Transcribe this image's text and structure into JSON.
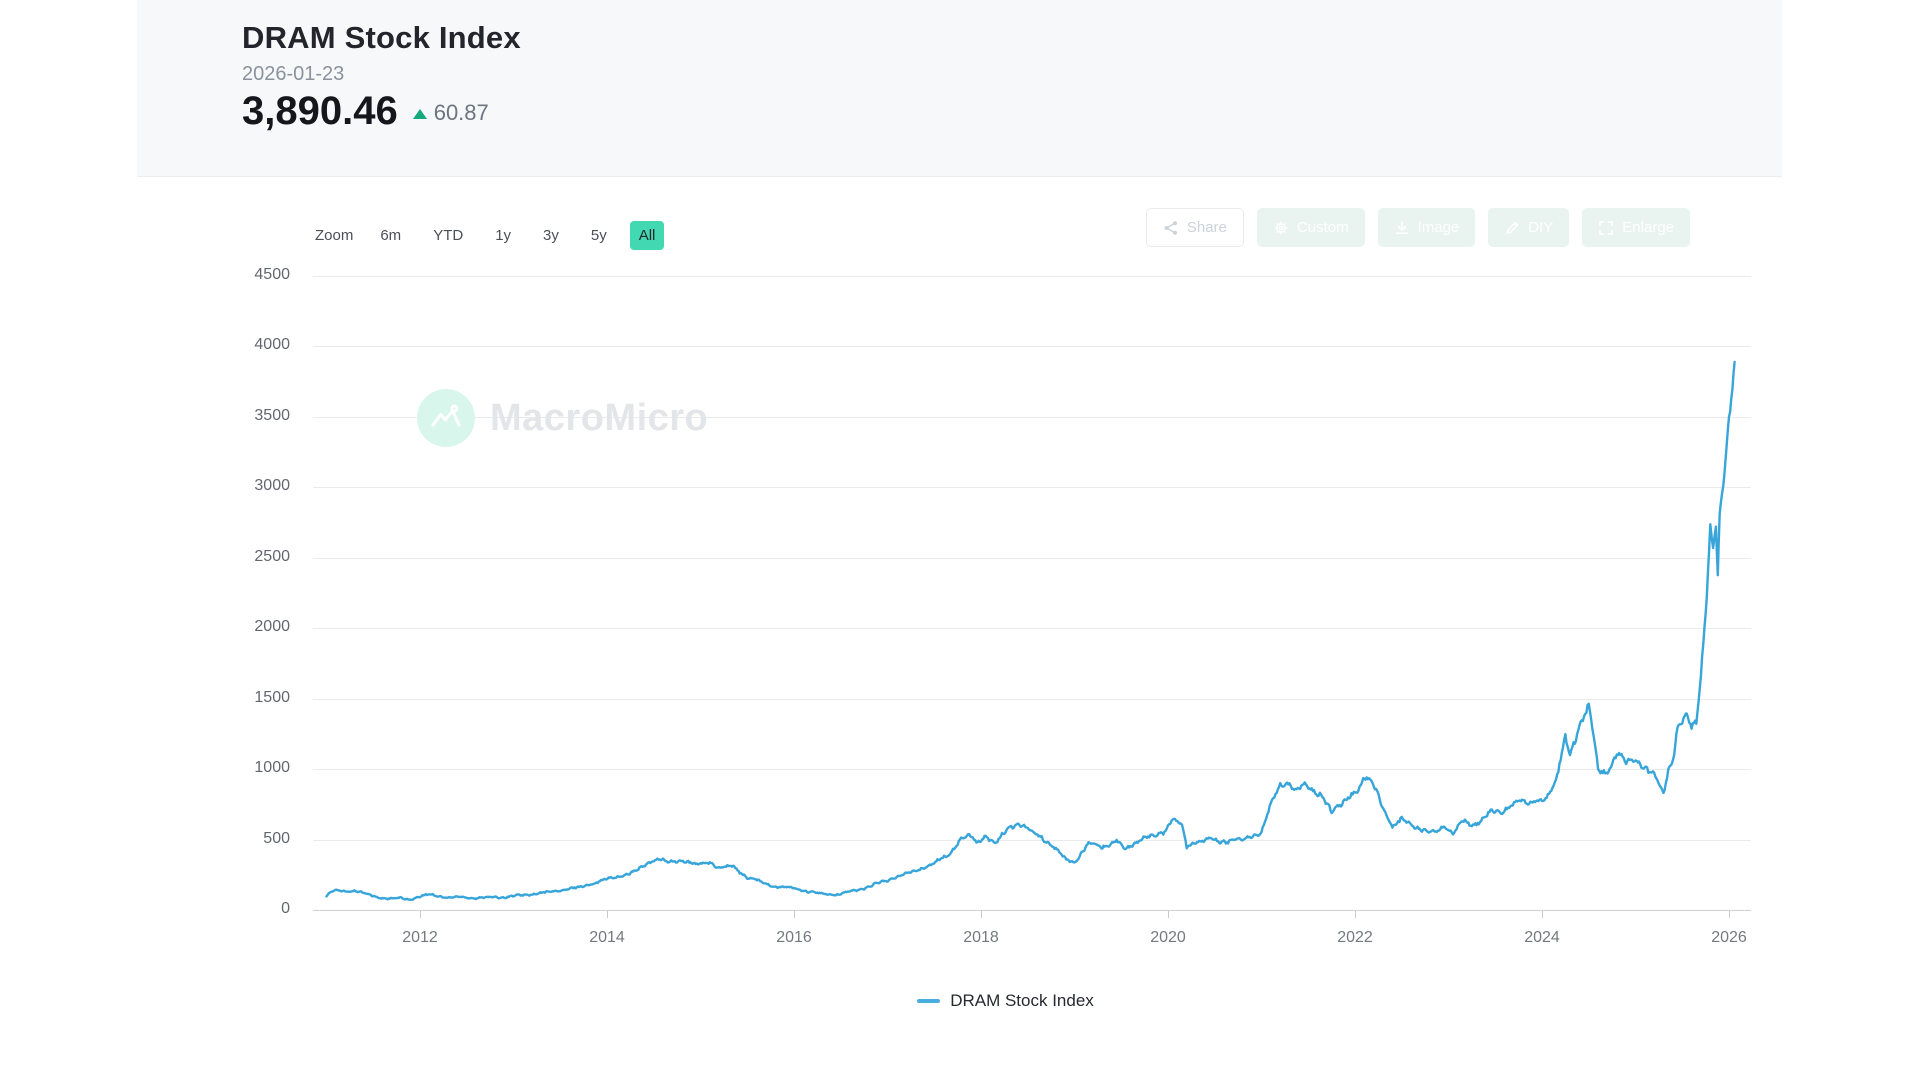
{
  "header": {
    "title": "DRAM Stock Index",
    "date": "2026-01-23",
    "value": "3,890.46",
    "change": "60.87",
    "change_direction": "up"
  },
  "toolbar": {
    "zoom_label": "Zoom",
    "ranges": [
      {
        "label": "6m",
        "active": false
      },
      {
        "label": "YTD",
        "active": false
      },
      {
        "label": "1y",
        "active": false
      },
      {
        "label": "3y",
        "active": false
      },
      {
        "label": "5y",
        "active": false
      },
      {
        "label": "All",
        "active": true
      }
    ],
    "actions": [
      {
        "label": "Share",
        "icon": "share",
        "style": "outline"
      },
      {
        "label": "Custom",
        "icon": "gear",
        "style": "mint"
      },
      {
        "label": "Image",
        "icon": "download",
        "style": "mint"
      },
      {
        "label": "DIY",
        "icon": "pencil",
        "style": "mint"
      },
      {
        "label": "Enlarge",
        "icon": "expand",
        "style": "mint"
      }
    ]
  },
  "chart": {
    "watermark": "MacroMicro",
    "legend_label": "DRAM Stock Index"
  },
  "colors": {
    "line_blue": "#38a5da",
    "legend_blue": "#4badde",
    "accent_green": "#41d8b2",
    "up_green": "#16a97d",
    "mint_button_bg": "#e9f4f1",
    "header_bg": "#f7f8f9"
  },
  "chart_data": {
    "type": "line",
    "title": "DRAM Stock Index",
    "xlabel": "",
    "ylabel": "",
    "x_range": [
      2011.0,
      2026.1
    ],
    "ylim": [
      0,
      4500
    ],
    "y_ticks": [
      0,
      500,
      1000,
      1500,
      2000,
      2500,
      3000,
      3500,
      4000,
      4500
    ],
    "x_ticks": [
      2012,
      2014,
      2016,
      2018,
      2020,
      2022,
      2024,
      2026
    ],
    "grid": "horizontal",
    "legend_position": "bottom",
    "latest": {
      "date": "2026-01-23",
      "value": 3890.46,
      "change": 60.87
    },
    "series": [
      {
        "name": "DRAM Stock Index",
        "color": "#38a5da",
        "points": [
          [
            2011.0,
            100
          ],
          [
            2011.05,
            125
          ],
          [
            2011.1,
            140
          ],
          [
            2011.2,
            132
          ],
          [
            2011.3,
            138
          ],
          [
            2011.45,
            110
          ],
          [
            2011.55,
            90
          ],
          [
            2011.7,
            78
          ],
          [
            2011.8,
            85
          ],
          [
            2011.9,
            75
          ],
          [
            2012.0,
            95
          ],
          [
            2012.1,
            110
          ],
          [
            2012.2,
            100
          ],
          [
            2012.3,
            88
          ],
          [
            2012.45,
            92
          ],
          [
            2012.6,
            85
          ],
          [
            2012.75,
            90
          ],
          [
            2012.9,
            92
          ],
          [
            2013.1,
            105
          ],
          [
            2013.3,
            120
          ],
          [
            2013.5,
            140
          ],
          [
            2013.7,
            160
          ],
          [
            2013.9,
            200
          ],
          [
            2014.1,
            235
          ],
          [
            2014.3,
            270
          ],
          [
            2014.45,
            340
          ],
          [
            2014.55,
            365
          ],
          [
            2014.65,
            335
          ],
          [
            2014.8,
            355
          ],
          [
            2014.95,
            320
          ],
          [
            2015.1,
            340
          ],
          [
            2015.2,
            300
          ],
          [
            2015.35,
            310
          ],
          [
            2015.5,
            230
          ],
          [
            2015.65,
            200
          ],
          [
            2015.8,
            165
          ],
          [
            2016.0,
            155
          ],
          [
            2016.15,
            130
          ],
          [
            2016.3,
            115
          ],
          [
            2016.45,
            108
          ],
          [
            2016.6,
            130
          ],
          [
            2016.75,
            155
          ],
          [
            2016.9,
            190
          ],
          [
            2017.1,
            235
          ],
          [
            2017.3,
            280
          ],
          [
            2017.5,
            330
          ],
          [
            2017.65,
            395
          ],
          [
            2017.8,
            510
          ],
          [
            2017.9,
            525
          ],
          [
            2017.95,
            480
          ],
          [
            2018.05,
            530
          ],
          [
            2018.15,
            465
          ],
          [
            2018.3,
            590
          ],
          [
            2018.4,
            620
          ],
          [
            2018.5,
            570
          ],
          [
            2018.65,
            520
          ],
          [
            2018.8,
            430
          ],
          [
            2018.9,
            360
          ],
          [
            2019.0,
            340
          ],
          [
            2019.15,
            470
          ],
          [
            2019.3,
            450
          ],
          [
            2019.45,
            490
          ],
          [
            2019.55,
            430
          ],
          [
            2019.7,
            505
          ],
          [
            2019.85,
            520
          ],
          [
            2019.95,
            555
          ],
          [
            2020.05,
            650
          ],
          [
            2020.15,
            600
          ],
          [
            2020.2,
            440
          ],
          [
            2020.3,
            490
          ],
          [
            2020.45,
            505
          ],
          [
            2020.55,
            480
          ],
          [
            2020.7,
            500
          ],
          [
            2020.8,
            495
          ],
          [
            2020.9,
            520
          ],
          [
            2021.0,
            560
          ],
          [
            2021.1,
            750
          ],
          [
            2021.2,
            880
          ],
          [
            2021.3,
            900
          ],
          [
            2021.35,
            860
          ],
          [
            2021.45,
            880
          ],
          [
            2021.55,
            840
          ],
          [
            2021.65,
            820
          ],
          [
            2021.75,
            700
          ],
          [
            2021.85,
            740
          ],
          [
            2021.95,
            820
          ],
          [
            2022.05,
            870
          ],
          [
            2022.1,
            945
          ],
          [
            2022.2,
            880
          ],
          [
            2022.3,
            740
          ],
          [
            2022.4,
            590
          ],
          [
            2022.5,
            640
          ],
          [
            2022.6,
            610
          ],
          [
            2022.75,
            560
          ],
          [
            2022.85,
            545
          ],
          [
            2022.95,
            600
          ],
          [
            2023.05,
            545
          ],
          [
            2023.15,
            630
          ],
          [
            2023.25,
            600
          ],
          [
            2023.35,
            640
          ],
          [
            2023.45,
            700
          ],
          [
            2023.55,
            680
          ],
          [
            2023.65,
            740
          ],
          [
            2023.75,
            780
          ],
          [
            2023.85,
            740
          ],
          [
            2023.95,
            780
          ],
          [
            2024.05,
            800
          ],
          [
            2024.15,
            900
          ],
          [
            2024.25,
            1230
          ],
          [
            2024.3,
            1120
          ],
          [
            2024.4,
            1300
          ],
          [
            2024.5,
            1430
          ],
          [
            2024.55,
            1230
          ],
          [
            2024.6,
            1000
          ],
          [
            2024.7,
            980
          ],
          [
            2024.8,
            1100
          ],
          [
            2024.9,
            1050
          ],
          [
            2025.0,
            1080
          ],
          [
            2025.1,
            1000
          ],
          [
            2025.2,
            950
          ],
          [
            2025.3,
            840
          ],
          [
            2025.35,
            1000
          ],
          [
            2025.4,
            1070
          ],
          [
            2025.45,
            1290
          ],
          [
            2025.5,
            1320
          ],
          [
            2025.55,
            1380
          ],
          [
            2025.6,
            1300
          ],
          [
            2025.65,
            1350
          ],
          [
            2025.7,
            1700
          ],
          [
            2025.75,
            2100
          ],
          [
            2025.8,
            2700
          ],
          [
            2025.83,
            2560
          ],
          [
            2025.86,
            2720
          ],
          [
            2025.88,
            2350
          ],
          [
            2025.9,
            2790
          ],
          [
            2025.95,
            3100
          ],
          [
            2026.0,
            3500
          ],
          [
            2026.06,
            3890
          ]
        ]
      }
    ]
  }
}
